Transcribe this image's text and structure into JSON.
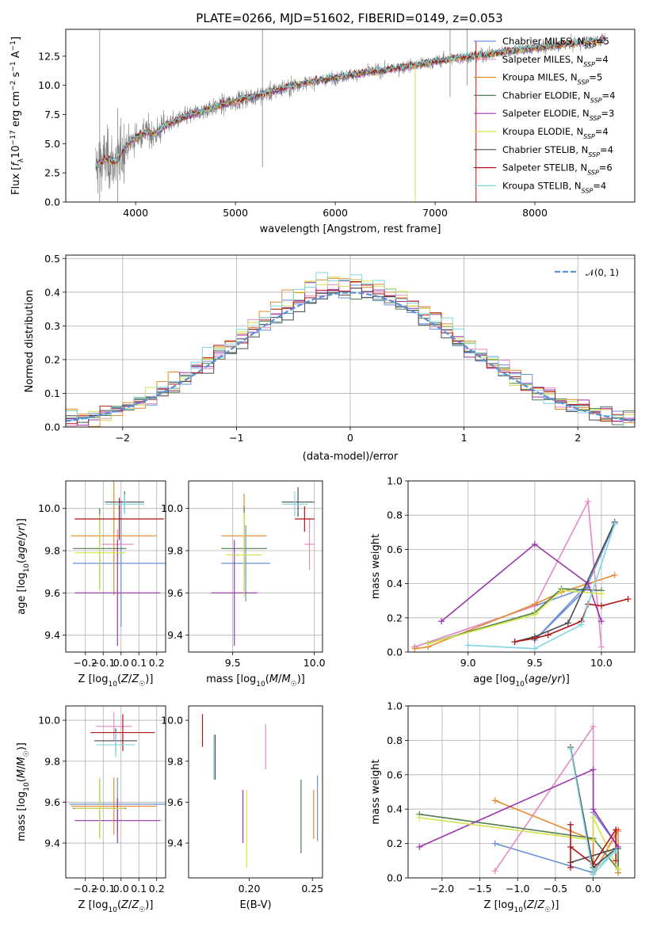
{
  "figure": {
    "title": "PLATE=0266, MJD=51602, FIBERID=0149, z=0.053"
  },
  "colors": {
    "Chabrier MILES": "#6a8fd8",
    "Salpeter MILES": "#e58ac2",
    "Kroupa MILES": "#e8892c",
    "Chabrier ELODIE": "#4f7f4f",
    "Salpeter ELODIE": "#9b35b0",
    "Kroupa ELODIE": "#d4e34a",
    "Chabrier STELIB": "#4a4a4a",
    "Salpeter STELIB": "#b01515",
    "Kroupa STELIB": "#7fd6e0",
    "data": "#808080",
    "normal": "#5b8fd6",
    "grid": "#b0b0b0"
  },
  "chart_data": [
    {
      "id": "spectrum",
      "type": "line",
      "title": "PLATE=0266, MJD=51602, FIBERID=0149, z=0.053",
      "xlabel": "wavelength [Angstrom, rest frame]",
      "ylabel": "Flux [f_λ 10^-17 erg cm^-2 s^-1 A^-1]",
      "xlim": [
        3300,
        9000
      ],
      "ylim": [
        0,
        14.8
      ],
      "xticks": [
        4000,
        5000,
        6000,
        7000,
        8000
      ],
      "yticks": [
        0.0,
        2.5,
        5.0,
        7.5,
        10.0,
        12.5
      ],
      "grid": false,
      "legend_position": "right",
      "legend": [
        {
          "model": "Chabrier MILES",
          "label": "Chabrier MILES, N",
          "sub": "SSP",
          "n": "=5"
        },
        {
          "model": "Salpeter MILES",
          "label": "Salpeter MILES, N",
          "sub": "SSP",
          "n": "=4"
        },
        {
          "model": "Kroupa MILES",
          "label": "Kroupa MILES, N",
          "sub": "SSP",
          "n": "=5"
        },
        {
          "model": "Chabrier ELODIE",
          "label": "Chabrier ELODIE, N",
          "sub": "SSP",
          "n": "=4"
        },
        {
          "model": "Salpeter ELODIE",
          "label": "Salpeter ELODIE, N",
          "sub": "SSP",
          "n": "=3"
        },
        {
          "model": "Kroupa ELODIE",
          "label": "Kroupa ELODIE, N",
          "sub": "SSP",
          "n": "=4"
        },
        {
          "model": "Chabrier STELIB",
          "label": "Chabrier STELIB, N",
          "sub": "SSP",
          "n": "=4"
        },
        {
          "model": "Salpeter STELIB",
          "label": "Salpeter STELIB, N",
          "sub": "SSP",
          "n": "=6"
        },
        {
          "model": "Kroupa STELIB",
          "label": "Kroupa STELIB, N",
          "sub": "SSP",
          "n": "=4"
        }
      ],
      "continuum": {
        "x": [
          3600,
          3700,
          3800,
          3900,
          4000,
          4100,
          4200,
          4300,
          4500,
          4700,
          4900,
          5100,
          5300,
          5500,
          5700,
          5900,
          6100,
          6300,
          6500,
          6700,
          6900,
          7100,
          7300,
          7500,
          7700,
          7900,
          8100,
          8300,
          8500,
          8700
        ],
        "y": [
          3.0,
          3.7,
          3.3,
          4.8,
          5.5,
          6.0,
          5.8,
          6.6,
          7.3,
          7.9,
          8.4,
          8.9,
          9.3,
          9.8,
          10.2,
          10.5,
          10.8,
          11.1,
          11.3,
          11.6,
          11.9,
          12.2,
          12.4,
          12.6,
          12.9,
          13.1,
          13.3,
          13.5,
          13.7,
          13.9
        ]
      }
    },
    {
      "id": "residuals",
      "type": "histogram",
      "xlabel": "(data-model)/error",
      "ylabel": "Normed distribution",
      "xlim": [
        -2.5,
        2.5
      ],
      "ylim": [
        0,
        0.51
      ],
      "xticks": [
        -2,
        -1,
        0,
        1,
        2
      ],
      "yticks": [
        0.0,
        0.1,
        0.2,
        0.3,
        0.4,
        0.5
      ],
      "grid": true,
      "legend_label": "𝒩(0, 1)",
      "legend_position": "upper right",
      "bin_width": 0.1
    },
    {
      "id": "age-vs-Z",
      "type": "errorbar",
      "xlabel": "Z [log10(Z/Z☉)]",
      "ylabel": "age [log10(age/yr)]",
      "xlim": [
        -0.31,
        0.25
      ],
      "ylim": [
        9.32,
        10.13
      ],
      "xticks": [
        -0.2,
        -0.1,
        0.0,
        0.1,
        0.2
      ],
      "yticks": [
        9.4,
        9.6,
        9.8,
        10.0
      ],
      "grid": true,
      "points": [
        {
          "model": "Chabrier MILES",
          "x": 0.0,
          "xerr": 0.27,
          "y": 9.74,
          "yerr": 0.3
        },
        {
          "model": "Salpeter MILES",
          "x": -0.02,
          "xerr": 0.09,
          "y": 9.83,
          "yerr": 0.07
        },
        {
          "model": "Kroupa MILES",
          "x": -0.04,
          "xerr": 0.24,
          "y": 9.87,
          "yerr": 0.28
        },
        {
          "model": "Chabrier ELODIE",
          "x": -0.12,
          "xerr": 0.15,
          "y": 9.81,
          "yerr": 0.19
        },
        {
          "model": "Salpeter ELODIE",
          "x": -0.02,
          "xerr": 0.24,
          "y": 9.6,
          "yerr": 0.25
        },
        {
          "model": "Kroupa ELODIE",
          "x": -0.12,
          "xerr": 0.14,
          "y": 9.79,
          "yerr": 0.18
        },
        {
          "model": "Chabrier STELIB",
          "x": 0.02,
          "xerr": 0.11,
          "y": 10.03,
          "yerr": 0.05
        },
        {
          "model": "Salpeter STELIB",
          "x": -0.01,
          "xerr": 0.25,
          "y": 9.95,
          "yerr": 0.1
        },
        {
          "model": "Kroupa STELIB",
          "x": 0.02,
          "xerr": 0.11,
          "y": 10.02,
          "yerr": 0.05
        }
      ]
    },
    {
      "id": "age-vs-mass",
      "type": "errorbar",
      "xlabel": "mass [log10(M/M☉)]",
      "ylabel": "",
      "xlim": [
        9.23,
        10.05
      ],
      "ylim": [
        9.32,
        10.13
      ],
      "xticks": [
        9.5,
        10.0
      ],
      "yticks": [
        9.4,
        9.6,
        9.8,
        10.0
      ],
      "grid": true,
      "points": [
        {
          "model": "Chabrier MILES",
          "x": 9.58,
          "xerr": 0.15,
          "y": 9.74,
          "yerr": 0.18
        },
        {
          "model": "Salpeter MILES",
          "x": 9.97,
          "xerr": 0.03,
          "y": 9.83,
          "yerr": 0.12
        },
        {
          "model": "Kroupa MILES",
          "x": 9.57,
          "xerr": 0.14,
          "y": 9.87,
          "yerr": 0.2
        },
        {
          "model": "Chabrier ELODIE",
          "x": 9.57,
          "xerr": 0.14,
          "y": 9.81,
          "yerr": 0.2
        },
        {
          "model": "Salpeter ELODIE",
          "x": 9.51,
          "xerr": 0.14,
          "y": 9.6,
          "yerr": 0.25
        },
        {
          "model": "Kroupa ELODIE",
          "x": 9.57,
          "xerr": 0.11,
          "y": 9.78,
          "yerr": 0.2
        },
        {
          "model": "Chabrier STELIB",
          "x": 9.9,
          "xerr": 0.1,
          "y": 10.03,
          "yerr": 0.07
        },
        {
          "model": "Salpeter STELIB",
          "x": 9.94,
          "xerr": 0.06,
          "y": 9.95,
          "yerr": 0.06
        },
        {
          "model": "Kroupa STELIB",
          "x": 9.88,
          "xerr": 0.08,
          "y": 10.02,
          "yerr": 0.06
        }
      ]
    },
    {
      "id": "weight-vs-age",
      "type": "line",
      "xlabel": "age [log10(age/yr)]",
      "ylabel": "mass weight",
      "xlim": [
        8.55,
        10.25
      ],
      "ylim": [
        0,
        1.0
      ],
      "xticks": [
        9.0,
        9.5,
        10.0
      ],
      "yticks": [
        0.0,
        0.2,
        0.4,
        0.6,
        0.8,
        1.0
      ],
      "grid": true,
      "series": [
        {
          "model": "Chabrier MILES",
          "x": [
            8.6,
            9.5,
            9.9,
            9.5,
            9.9,
            10.1
          ],
          "y": [
            0.03,
            0.27,
            0.38,
            0.07,
            0.4,
            0.75
          ]
        },
        {
          "model": "Salpeter MILES",
          "x": [
            8.6,
            9.5,
            9.9,
            10.0
          ],
          "y": [
            0.03,
            0.27,
            0.88,
            0.03
          ]
        },
        {
          "model": "Kroupa MILES",
          "x": [
            8.6,
            8.7,
            9.5,
            9.7,
            10.1
          ],
          "y": [
            0.02,
            0.03,
            0.28,
            0.35,
            0.45
          ]
        },
        {
          "model": "Chabrier ELODIE",
          "x": [
            8.7,
            9.5,
            9.7,
            10.0
          ],
          "y": [
            0.05,
            0.23,
            0.37,
            0.36
          ]
        },
        {
          "model": "Salpeter ELODIE",
          "x": [
            8.8,
            9.5,
            9.9,
            10.0
          ],
          "y": [
            0.18,
            0.63,
            0.4,
            0.18
          ]
        },
        {
          "model": "Kroupa ELODIE",
          "x": [
            8.7,
            9.5,
            9.7,
            10.0
          ],
          "y": [
            0.05,
            0.22,
            0.36,
            0.34
          ]
        },
        {
          "model": "Chabrier STELIB",
          "x": [
            9.35,
            9.5,
            9.75,
            10.1
          ],
          "y": [
            0.06,
            0.09,
            0.17,
            0.76
          ]
        },
        {
          "model": "Salpeter STELIB",
          "x": [
            9.35,
            9.5,
            9.6,
            9.85,
            9.9,
            10.0,
            10.2
          ],
          "y": [
            0.06,
            0.08,
            0.1,
            0.18,
            0.28,
            0.27,
            0.31
          ]
        },
        {
          "model": "Kroupa STELIB",
          "x": [
            9.0,
            9.5,
            9.85,
            10.1
          ],
          "y": [
            0.04,
            0.02,
            0.16,
            0.75
          ]
        }
      ]
    },
    {
      "id": "mass-vs-Z",
      "type": "errorbar",
      "xlabel": "Z [log10(Z/Z☉)]",
      "ylabel": "mass [log10(M/M☉)]",
      "xlim": [
        -0.31,
        0.25
      ],
      "ylim": [
        9.23,
        10.07
      ],
      "xticks": [
        -0.2,
        -0.1,
        0.0,
        0.1,
        0.2
      ],
      "yticks": [
        9.4,
        9.6,
        9.8,
        10.0
      ],
      "grid": true,
      "points": [
        {
          "model": "Chabrier MILES",
          "x": -0.02,
          "xerr": 0.27,
          "y": 9.59,
          "yerr": 0.13
        },
        {
          "model": "Salpeter MILES",
          "x": -0.04,
          "xerr": 0.1,
          "y": 9.97,
          "yerr": 0.07
        },
        {
          "model": "Kroupa MILES",
          "x": -0.04,
          "xerr": 0.24,
          "y": 9.58,
          "yerr": 0.14
        },
        {
          "model": "Chabrier ELODIE",
          "x": -0.12,
          "xerr": 0.15,
          "y": 9.57,
          "yerr": 0.14
        },
        {
          "model": "Salpeter ELODIE",
          "x": -0.02,
          "xerr": 0.24,
          "y": 9.51,
          "yerr": 0.11
        },
        {
          "model": "Kroupa ELODIE",
          "x": -0.12,
          "xerr": 0.14,
          "y": 9.57,
          "yerr": 0.15
        },
        {
          "model": "Chabrier STELIB",
          "x": -0.03,
          "xerr": 0.12,
          "y": 9.9,
          "yerr": 0.06
        },
        {
          "model": "Salpeter STELIB",
          "x": 0.01,
          "xerr": 0.18,
          "y": 9.94,
          "yerr": 0.09
        },
        {
          "model": "Kroupa STELIB",
          "x": -0.03,
          "xerr": 0.11,
          "y": 9.88,
          "yerr": 0.06
        }
      ]
    },
    {
      "id": "mass-vs-EBV",
      "type": "errorbar",
      "xlabel": "E(B-V)",
      "ylabel": "",
      "xlim": [
        0.152,
        0.258
      ],
      "ylim": [
        9.23,
        10.07
      ],
      "xticks": [
        0.2,
        0.25
      ],
      "yticks": [
        9.4,
        9.6,
        9.8,
        10.0
      ],
      "grid": false,
      "points": [
        {
          "model": "Chabrier MILES",
          "x": 0.254,
          "y": 9.57,
          "yerr": 0.16
        },
        {
          "model": "Salpeter MILES",
          "x": 0.213,
          "y": 9.87,
          "yerr": 0.11
        },
        {
          "model": "Kroupa MILES",
          "x": 0.251,
          "y": 9.54,
          "yerr": 0.12
        },
        {
          "model": "Chabrier ELODIE",
          "x": 0.241,
          "y": 9.53,
          "yerr": 0.18
        },
        {
          "model": "Salpeter ELODIE",
          "x": 0.195,
          "y": 9.53,
          "yerr": 0.13
        },
        {
          "model": "Kroupa ELODIE",
          "x": 0.198,
          "y": 9.47,
          "yerr": 0.19
        },
        {
          "model": "Chabrier STELIB",
          "x": 0.173,
          "y": 9.82,
          "yerr": 0.11
        },
        {
          "model": "Salpeter STELIB",
          "x": 0.163,
          "y": 9.95,
          "yerr": 0.08
        },
        {
          "model": "Kroupa STELIB",
          "x": 0.172,
          "y": 9.82,
          "yerr": 0.11
        }
      ]
    },
    {
      "id": "weight-vs-Z",
      "type": "line",
      "xlabel": "Z [log10(Z/Z☉)]",
      "ylabel": "mass weight",
      "xlim": [
        -2.45,
        0.55
      ],
      "ylim": [
        0,
        1.0
      ],
      "xticks": [
        -2.0,
        -1.5,
        -1.0,
        -0.5,
        0.0
      ],
      "yticks": [
        0.0,
        0.2,
        0.4,
        0.6,
        0.8,
        1.0
      ],
      "grid": true,
      "series": [
        {
          "model": "Chabrier MILES",
          "x": [
            -1.3,
            0.0,
            0.0,
            0.33,
            0.33
          ],
          "y": [
            0.2,
            0.03,
            0.38,
            0.18,
            0.03
          ]
        },
        {
          "model": "Salpeter MILES",
          "x": [
            -1.3,
            0.0,
            0.0,
            0.33
          ],
          "y": [
            0.04,
            0.88,
            0.03,
            0.27
          ]
        },
        {
          "model": "Kroupa MILES",
          "x": [
            -1.3,
            0.0,
            0.0,
            0.33,
            0.33
          ],
          "y": [
            0.45,
            0.22,
            0.02,
            0.28,
            0.03
          ]
        },
        {
          "model": "Chabrier ELODIE",
          "x": [
            -2.3,
            0.0,
            0.33,
            0.33
          ],
          "y": [
            0.37,
            0.23,
            0.05,
            0.17
          ]
        },
        {
          "model": "Salpeter ELODIE",
          "x": [
            -2.3,
            0.0,
            0.0,
            0.33
          ],
          "y": [
            0.18,
            0.63,
            0.4,
            0.18
          ]
        },
        {
          "model": "Kroupa ELODIE",
          "x": [
            -2.3,
            0.0,
            0.0,
            0.33
          ],
          "y": [
            0.35,
            0.22,
            0.35,
            0.05
          ]
        },
        {
          "model": "Chabrier STELIB",
          "x": [
            -0.3,
            0.0,
            0.3,
            -0.3
          ],
          "y": [
            0.76,
            0.06,
            0.17,
            0.09
          ]
        },
        {
          "model": "Salpeter STELIB",
          "x": [
            -0.3,
            -0.3,
            -0.3,
            0.0,
            0.3,
            0.3
          ],
          "y": [
            0.31,
            0.06,
            0.18,
            0.08,
            0.28,
            0.1
          ]
        },
        {
          "model": "Kroupa STELIB",
          "x": [
            -0.3,
            0.0,
            0.3,
            0.0
          ],
          "y": [
            0.75,
            0.02,
            0.16,
            0.04
          ]
        }
      ]
    }
  ]
}
